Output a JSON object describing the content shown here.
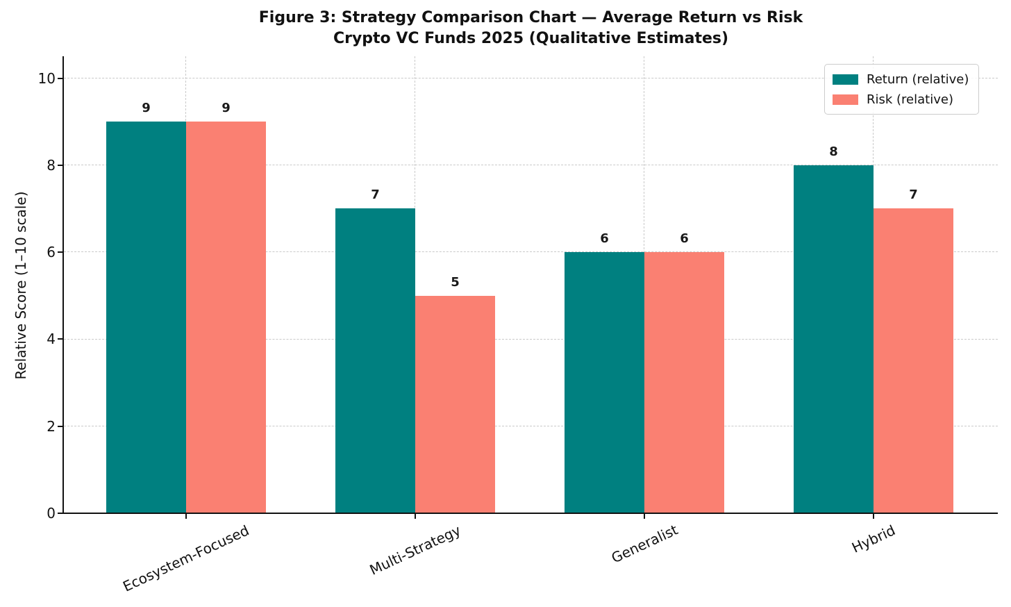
{
  "title": {
    "line1": "Figure 3: Strategy Comparison Chart — Average Return vs Risk",
    "line2": "Crypto VC Funds 2025 (Qualitative Estimates)"
  },
  "y_axis": {
    "label": "Relative Score (1–10 scale)",
    "tick_labels": [
      "0",
      "2",
      "4",
      "6",
      "8",
      "10"
    ],
    "tick_values": [
      0,
      2,
      4,
      6,
      8,
      10
    ]
  },
  "legend": {
    "items": [
      {
        "label": "Return (relative)",
        "color": "#008080"
      },
      {
        "label": "Risk (relative)",
        "color": "#FA8072"
      }
    ]
  },
  "chart_data": {
    "type": "bar",
    "title": "Figure 3: Strategy Comparison Chart — Average Return vs Risk\nCrypto VC Funds 2025 (Qualitative Estimates)",
    "categories": [
      "Ecosystem-Focused",
      "Multi-Strategy",
      "Generalist",
      "Hybrid"
    ],
    "series": [
      {
        "name": "Return (relative)",
        "color": "#008080",
        "values": [
          9,
          7,
          6,
          8
        ]
      },
      {
        "name": "Risk (relative)",
        "color": "#FA8072",
        "values": [
          9,
          5,
          6,
          7
        ]
      }
    ],
    "value_labels_shown": true,
    "xlabel": "",
    "ylabel": "Relative Score (1–10 scale)",
    "ylim": [
      0,
      10.5
    ],
    "yticks": [
      0,
      2,
      4,
      6,
      8,
      10
    ],
    "grid": "dashed, both axes, light gray, behind bars",
    "legend_position": "upper right",
    "x_tick_rotation_deg": 25
  }
}
